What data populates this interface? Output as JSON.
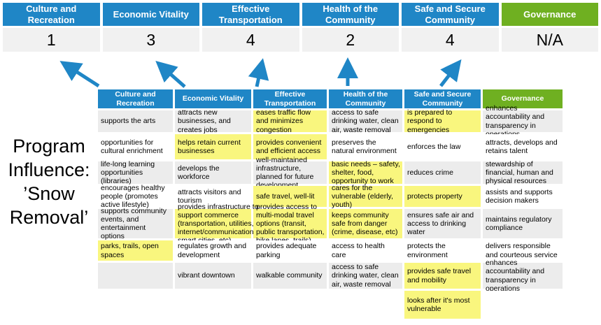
{
  "colors": {
    "header_blue": "#1F86C6",
    "header_green": "#6FB021",
    "highlight_yellow": "#F9F67E",
    "stripe_gray": "#ECECEC",
    "score_bg": "#F1F1F1",
    "arrow_blue": "#1F86C6"
  },
  "program_influence": {
    "full_text": "Program Influence: ’Snow Removal’",
    "lines": [
      "Program",
      "Influence:",
      "’Snow",
      "Removal’"
    ]
  },
  "summary": {
    "columns": [
      {
        "label": "Culture and Recreation",
        "score": "1",
        "theme": "blue"
      },
      {
        "label": "Economic Vitality",
        "score": "3",
        "theme": "blue"
      },
      {
        "label": "Effective Transportation",
        "score": "4",
        "theme": "blue"
      },
      {
        "label": "Health of the Community",
        "score": "2",
        "theme": "blue"
      },
      {
        "label": "Safe and Secure Community",
        "score": "4",
        "theme": "blue"
      },
      {
        "label": "Governance",
        "score": "N/A",
        "theme": "green"
      }
    ]
  },
  "matrix": {
    "headers": [
      {
        "label": "Culture and Recreation",
        "theme": "blue"
      },
      {
        "label": "Economic Vitality",
        "theme": "blue"
      },
      {
        "label": "Effective Transportation",
        "theme": "blue"
      },
      {
        "label": "Health of the Community",
        "theme": "blue"
      },
      {
        "label": "Safe and Secure Community",
        "theme": "blue"
      },
      {
        "label": "Governance",
        "theme": "green"
      }
    ],
    "rows": [
      [
        {
          "text": "supports the arts",
          "highlight": false
        },
        {
          "text": "attracts new businesses, and creates jobs",
          "highlight": false
        },
        {
          "text": "eases traffic flow and minimizes congestion",
          "highlight": true
        },
        {
          "text": "access to safe drinking water, clean air, waste removal",
          "highlight": false
        },
        {
          "text": "is prepared to respond to emergencies",
          "highlight": true
        },
        {
          "text": "enhances accountability and transparency in operations",
          "highlight": false
        }
      ],
      [
        {
          "text": "opportunities for cultural enrichment",
          "highlight": false
        },
        {
          "text": "helps retain current businesses",
          "highlight": true
        },
        {
          "text": "provides convenient and efficient access",
          "highlight": true
        },
        {
          "text": "preserves the natural environment",
          "highlight": false
        },
        {
          "text": "enforces the law",
          "highlight": false
        },
        {
          "text": "attracts, develops and retains talent",
          "highlight": false
        }
      ],
      [
        {
          "text": "life-long learning opportunities (libraries)",
          "highlight": false
        },
        {
          "text": "develops the workforce",
          "highlight": false
        },
        {
          "text": "well-maintained infrastructure, planned for future development",
          "highlight": false
        },
        {
          "text": "basic needs – safety, shelter, food, opportunity to work",
          "highlight": true
        },
        {
          "text": "reduces crime",
          "highlight": false
        },
        {
          "text": "stewardship of financial, human and physical resources",
          "highlight": false
        }
      ],
      [
        {
          "text": "encourages healthy people (promotes active lifestyle)",
          "highlight": false
        },
        {
          "text": "attracts visitors and tourism",
          "highlight": false
        },
        {
          "text": "safe travel, well-lit",
          "highlight": true
        },
        {
          "text": "cares for the vulnerable (elderly, youth)",
          "highlight": true
        },
        {
          "text": "protects property",
          "highlight": true
        },
        {
          "text": "assists and supports decision makers",
          "highlight": false
        }
      ],
      [
        {
          "text": "supports community events, and entertainment options",
          "highlight": false
        },
        {
          "text": "provides infrastructure to support commerce (transportation, utilities, internet/communications, smart cities, etc)",
          "highlight": true
        },
        {
          "text": "provides access to multi-modal travel options (transit, public transportation, bike lanes, trails)",
          "highlight": true
        },
        {
          "text": "keeps community safe from danger (crime, disease, etc)",
          "highlight": true
        },
        {
          "text": "ensures safe air and access to drinking water",
          "highlight": false
        },
        {
          "text": "maintains regulatory compliance",
          "highlight": false
        }
      ],
      [
        {
          "text": "parks, trails, open spaces",
          "highlight": true
        },
        {
          "text": "regulates growth and development",
          "highlight": false
        },
        {
          "text": "provides adequate parking",
          "highlight": false
        },
        {
          "text": "access to health care",
          "highlight": false
        },
        {
          "text": "protects the environment",
          "highlight": false
        },
        {
          "text": "delivers responsible and courteous service",
          "highlight": false
        }
      ],
      [
        {
          "text": "",
          "highlight": false
        },
        {
          "text": "vibrant downtown",
          "highlight": false
        },
        {
          "text": "walkable community",
          "highlight": false
        },
        {
          "text": "access to safe drinking water, clean air, waste removal",
          "highlight": false
        },
        {
          "text": "provides safe travel and mobility",
          "highlight": true
        },
        {
          "text": "enhances accountability and transparency in operations",
          "highlight": false
        }
      ],
      [
        {
          "text": "",
          "highlight": false
        },
        {
          "text": "",
          "highlight": false
        },
        {
          "text": "",
          "highlight": false
        },
        {
          "text": "",
          "highlight": false
        },
        {
          "text": "looks after it's most vulnerable",
          "highlight": true
        },
        {
          "text": "",
          "highlight": false
        }
      ]
    ]
  }
}
